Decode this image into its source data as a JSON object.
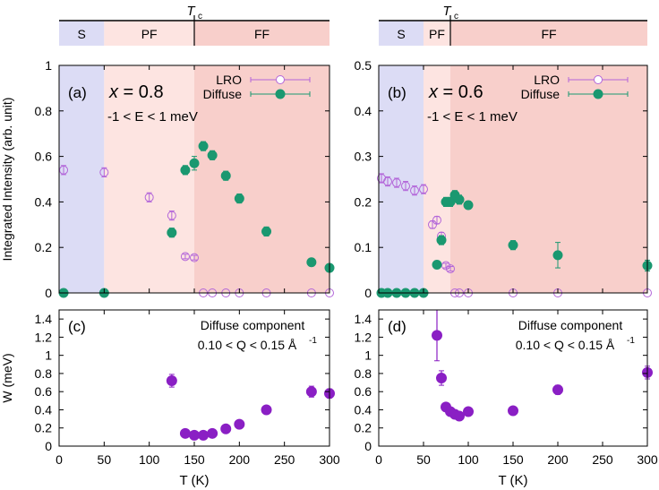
{
  "chart_data": {
    "common": {
      "ylabel_intensity": "Integrated Intensity (arb. unit)",
      "ylabel_width": "W (meV)",
      "xlabel": "T (K)",
      "x_range": [
        0,
        300
      ],
      "x_ticks": [
        "0",
        "50",
        "100",
        "150",
        "200",
        "250",
        "300"
      ],
      "legend_lro": "LRO",
      "legend_diffuse": "Diffuse",
      "energy_window": "-1 < E < 1 meV",
      "component_title": "Diffuse component",
      "q_window": "0.10 < Q < 0.15 Å",
      "q_unit_exp": "-1",
      "tc_main": "T",
      "tc_sub": "c",
      "x_label_prefix": "x",
      "x_label_eq": " = ",
      "colors": {
        "lro": "#b366d9",
        "diffuse": "#1a9870",
        "width": "#8a1fc4",
        "S": "#dcdcf5",
        "PF": "#fde4e1",
        "FF": "#f8cfcb"
      }
    },
    "panels": [
      {
        "id": "a",
        "label": "(a)",
        "x_value": "0.8",
        "phases": [
          {
            "name": "S",
            "from": 0,
            "to": 50
          },
          {
            "name": "PF",
            "from": 50,
            "to": 150
          },
          {
            "name": "FF",
            "from": 150,
            "to": 300
          }
        ],
        "tc": 150,
        "ylim": [
          0,
          1
        ],
        "yticks": [
          "0",
          "0.2",
          "0.4",
          "0.6",
          "0.8",
          "1"
        ],
        "lro": [
          {
            "T": 5,
            "v": 0.54,
            "e": 0.02
          },
          {
            "T": 50,
            "v": 0.53,
            "e": 0.02
          },
          {
            "T": 100,
            "v": 0.42,
            "e": 0.02
          },
          {
            "T": 125,
            "v": 0.34,
            "e": 0.02
          },
          {
            "T": 140,
            "v": 0.16,
            "e": 0.01
          },
          {
            "T": 150,
            "v": 0.155,
            "e": 0.01
          },
          {
            "T": 160,
            "v": 0,
            "e": 0
          },
          {
            "T": 170,
            "v": 0,
            "e": 0
          },
          {
            "T": 185,
            "v": 0,
            "e": 0
          },
          {
            "T": 200,
            "v": 0,
            "e": 0
          },
          {
            "T": 230,
            "v": 0,
            "e": 0
          },
          {
            "T": 280,
            "v": 0,
            "e": 0
          },
          {
            "T": 300,
            "v": 0,
            "e": 0
          }
        ],
        "diffuse": [
          {
            "T": 5,
            "v": 0,
            "e": 0
          },
          {
            "T": 50,
            "v": 0,
            "e": 0
          },
          {
            "T": 125,
            "v": 0.265,
            "e": 0.02
          },
          {
            "T": 140,
            "v": 0.54,
            "e": 0.02
          },
          {
            "T": 150,
            "v": 0.57,
            "e": 0.03
          },
          {
            "T": 160,
            "v": 0.645,
            "e": 0.02
          },
          {
            "T": 170,
            "v": 0.605,
            "e": 0.02
          },
          {
            "T": 185,
            "v": 0.515,
            "e": 0.02
          },
          {
            "T": 200,
            "v": 0.415,
            "e": 0.02
          },
          {
            "T": 230,
            "v": 0.27,
            "e": 0.02
          },
          {
            "T": 280,
            "v": 0.135,
            "e": 0.01
          },
          {
            "T": 300,
            "v": 0.11,
            "e": 0.01
          }
        ]
      },
      {
        "id": "b",
        "label": "(b)",
        "x_value": "0.6",
        "phases": [
          {
            "name": "S",
            "from": 0,
            "to": 50
          },
          {
            "name": "PF",
            "from": 50,
            "to": 80
          },
          {
            "name": "FF",
            "from": 80,
            "to": 300
          }
        ],
        "tc": 80,
        "ylim": [
          0,
          0.5
        ],
        "yticks": [
          "0",
          "0.1",
          "0.2",
          "0.3",
          "0.4",
          "0.5"
        ],
        "lro": [
          {
            "T": 3,
            "v": 0.252,
            "e": 0.01
          },
          {
            "T": 10,
            "v": 0.245,
            "e": 0.01
          },
          {
            "T": 20,
            "v": 0.242,
            "e": 0.01
          },
          {
            "T": 30,
            "v": 0.235,
            "e": 0.01
          },
          {
            "T": 40,
            "v": 0.225,
            "e": 0.01
          },
          {
            "T": 50,
            "v": 0.228,
            "e": 0.01
          },
          {
            "T": 60,
            "v": 0.15,
            "e": 0.008
          },
          {
            "T": 65,
            "v": 0.16,
            "e": 0.008
          },
          {
            "T": 70,
            "v": 0.125,
            "e": 0.008
          },
          {
            "T": 75,
            "v": 0.06,
            "e": 0.005
          },
          {
            "T": 80,
            "v": 0.053,
            "e": 0.005
          },
          {
            "T": 85,
            "v": 0,
            "e": 0
          },
          {
            "T": 90,
            "v": 0,
            "e": 0
          },
          {
            "T": 100,
            "v": 0,
            "e": 0
          },
          {
            "T": 150,
            "v": 0,
            "e": 0
          },
          {
            "T": 200,
            "v": 0,
            "e": 0
          },
          {
            "T": 300,
            "v": 0,
            "e": 0
          }
        ],
        "diffuse": [
          {
            "T": 3,
            "v": 0,
            "e": 0
          },
          {
            "T": 10,
            "v": 0,
            "e": 0
          },
          {
            "T": 20,
            "v": 0,
            "e": 0
          },
          {
            "T": 30,
            "v": 0,
            "e": 0
          },
          {
            "T": 40,
            "v": 0,
            "e": 0
          },
          {
            "T": 50,
            "v": 0,
            "e": 0
          },
          {
            "T": 65,
            "v": 0.062,
            "e": 0.008
          },
          {
            "T": 70,
            "v": 0.116,
            "e": 0.01
          },
          {
            "T": 75,
            "v": 0.2,
            "e": 0.01
          },
          {
            "T": 80,
            "v": 0.2,
            "e": 0.01
          },
          {
            "T": 85,
            "v": 0.215,
            "e": 0.01
          },
          {
            "T": 90,
            "v": 0.205,
            "e": 0.01
          },
          {
            "T": 100,
            "v": 0.193,
            "e": 0.008
          },
          {
            "T": 150,
            "v": 0.105,
            "e": 0.01
          },
          {
            "T": 200,
            "v": 0.083,
            "e": 0.028
          },
          {
            "T": 300,
            "v": 0.06,
            "e": 0.012
          }
        ]
      }
    ],
    "width_panels": [
      {
        "id": "c",
        "label": "(c)",
        "ylim": [
          0,
          1.5
        ],
        "yticks": [
          "0",
          "0.2",
          "0.4",
          "0.6",
          "0.8",
          "1",
          "1.2",
          "1.4"
        ],
        "points": [
          {
            "T": 125,
            "v": 0.72,
            "e": 0.07
          },
          {
            "T": 140,
            "v": 0.14,
            "e": 0.02
          },
          {
            "T": 150,
            "v": 0.12,
            "e": 0.02
          },
          {
            "T": 160,
            "v": 0.12,
            "e": 0.02
          },
          {
            "T": 170,
            "v": 0.14,
            "e": 0.02
          },
          {
            "T": 185,
            "v": 0.19,
            "e": 0.02
          },
          {
            "T": 200,
            "v": 0.24,
            "e": 0.02
          },
          {
            "T": 230,
            "v": 0.4,
            "e": 0.03
          },
          {
            "T": 280,
            "v": 0.6,
            "e": 0.06
          },
          {
            "T": 300,
            "v": 0.58,
            "e": 0.05
          }
        ]
      },
      {
        "id": "d",
        "label": "(d)",
        "ylim": [
          0,
          1.5
        ],
        "yticks": [
          "0",
          "0.2",
          "0.4",
          "0.6",
          "0.8",
          "1",
          "1.2",
          "1.4"
        ],
        "points": [
          {
            "T": 65,
            "v": 1.22,
            "e": 0.28
          },
          {
            "T": 70,
            "v": 0.75,
            "e": 0.08
          },
          {
            "T": 75,
            "v": 0.43,
            "e": 0.03
          },
          {
            "T": 80,
            "v": 0.38,
            "e": 0.03
          },
          {
            "T": 85,
            "v": 0.35,
            "e": 0.02
          },
          {
            "T": 90,
            "v": 0.33,
            "e": 0.02
          },
          {
            "T": 100,
            "v": 0.38,
            "e": 0.02
          },
          {
            "T": 150,
            "v": 0.39,
            "e": 0.02
          },
          {
            "T": 200,
            "v": 0.62,
            "e": 0.05
          },
          {
            "T": 300,
            "v": 0.81,
            "e": 0.07
          }
        ]
      }
    ]
  }
}
